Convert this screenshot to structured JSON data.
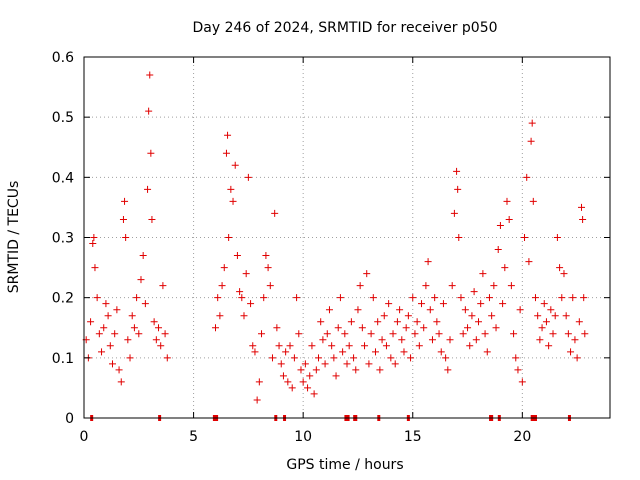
{
  "chart_data": {
    "type": "scatter",
    "title": "Day 246 of 2024, SRMTID for receiver p050",
    "xlabel": "GPS time / hours",
    "ylabel": "SRMTID / TECUs",
    "xlim": [
      0,
      24
    ],
    "ylim": [
      0,
      0.6
    ],
    "x_ticks": [
      "0",
      "5",
      "10",
      "15",
      "20"
    ],
    "x_tick_values": [
      0,
      5,
      10,
      15,
      20
    ],
    "y_ticks": [
      "0",
      "0.1",
      "0.2",
      "0.3",
      "0.4",
      "0.5",
      "0.6"
    ],
    "y_tick_values": [
      0,
      0.1,
      0.2,
      0.3,
      0.4,
      0.5,
      0.6
    ],
    "grid": true,
    "marker": "plus",
    "color": "#e00000",
    "series": [
      {
        "name": "SRMTID",
        "points": [
          [
            0.1,
            0.13
          ],
          [
            0.2,
            0.1
          ],
          [
            0.3,
            0.16
          ],
          [
            0.4,
            0.29
          ],
          [
            0.45,
            0.3
          ],
          [
            0.5,
            0.25
          ],
          [
            0.6,
            0.2
          ],
          [
            0.7,
            0.14
          ],
          [
            0.8,
            0.11
          ],
          [
            0.9,
            0.15
          ],
          [
            1.0,
            0.19
          ],
          [
            1.1,
            0.17
          ],
          [
            1.2,
            0.12
          ],
          [
            1.3,
            0.09
          ],
          [
            1.4,
            0.14
          ],
          [
            1.5,
            0.18
          ],
          [
            1.6,
            0.08
          ],
          [
            1.7,
            0.06
          ],
          [
            1.8,
            0.33
          ],
          [
            1.85,
            0.36
          ],
          [
            1.9,
            0.3
          ],
          [
            2.0,
            0.13
          ],
          [
            2.1,
            0.1
          ],
          [
            2.2,
            0.17
          ],
          [
            2.3,
            0.15
          ],
          [
            2.4,
            0.2
          ],
          [
            2.5,
            0.14
          ],
          [
            2.6,
            0.23
          ],
          [
            2.7,
            0.27
          ],
          [
            2.8,
            0.19
          ],
          [
            2.9,
            0.38
          ],
          [
            2.95,
            0.51
          ],
          [
            3.0,
            0.57
          ],
          [
            3.05,
            0.44
          ],
          [
            3.1,
            0.33
          ],
          [
            3.2,
            0.16
          ],
          [
            3.3,
            0.13
          ],
          [
            3.4,
            0.15
          ],
          [
            3.5,
            0.12
          ],
          [
            3.6,
            0.22
          ],
          [
            3.7,
            0.14
          ],
          [
            3.8,
            0.1
          ],
          [
            6.0,
            0.15
          ],
          [
            6.1,
            0.2
          ],
          [
            6.2,
            0.17
          ],
          [
            6.3,
            0.22
          ],
          [
            6.4,
            0.25
          ],
          [
            6.5,
            0.44
          ],
          [
            6.55,
            0.47
          ],
          [
            6.6,
            0.3
          ],
          [
            6.7,
            0.38
          ],
          [
            6.8,
            0.36
          ],
          [
            6.9,
            0.42
          ],
          [
            7.0,
            0.27
          ],
          [
            7.1,
            0.21
          ],
          [
            7.2,
            0.2
          ],
          [
            7.3,
            0.17
          ],
          [
            7.4,
            0.24
          ],
          [
            7.5,
            0.4
          ],
          [
            7.6,
            0.19
          ],
          [
            7.7,
            0.12
          ],
          [
            7.8,
            0.11
          ],
          [
            7.9,
            0.03
          ],
          [
            8.0,
            0.06
          ],
          [
            8.1,
            0.14
          ],
          [
            8.2,
            0.2
          ],
          [
            8.3,
            0.27
          ],
          [
            8.4,
            0.25
          ],
          [
            8.5,
            0.22
          ],
          [
            8.6,
            0.1
          ],
          [
            8.7,
            0.34
          ],
          [
            8.8,
            0.15
          ],
          [
            8.9,
            0.12
          ],
          [
            9.0,
            0.09
          ],
          [
            9.1,
            0.07
          ],
          [
            9.2,
            0.11
          ],
          [
            9.3,
            0.06
          ],
          [
            9.4,
            0.12
          ],
          [
            9.5,
            0.05
          ],
          [
            9.6,
            0.1
          ],
          [
            9.7,
            0.2
          ],
          [
            9.8,
            0.14
          ],
          [
            9.9,
            0.08
          ],
          [
            10.0,
            0.06
          ],
          [
            10.1,
            0.09
          ],
          [
            10.2,
            0.05
          ],
          [
            10.3,
            0.07
          ],
          [
            10.4,
            0.12
          ],
          [
            10.5,
            0.04
          ],
          [
            10.6,
            0.08
          ],
          [
            10.7,
            0.1
          ],
          [
            10.8,
            0.16
          ],
          [
            10.9,
            0.13
          ],
          [
            11.0,
            0.09
          ],
          [
            11.1,
            0.14
          ],
          [
            11.2,
            0.18
          ],
          [
            11.3,
            0.12
          ],
          [
            11.4,
            0.1
          ],
          [
            11.5,
            0.07
          ],
          [
            11.6,
            0.15
          ],
          [
            11.7,
            0.2
          ],
          [
            11.8,
            0.11
          ],
          [
            11.9,
            0.14
          ],
          [
            12.0,
            0.09
          ],
          [
            12.1,
            0.12
          ],
          [
            12.2,
            0.16
          ],
          [
            12.3,
            0.1
          ],
          [
            12.4,
            0.08
          ],
          [
            12.5,
            0.18
          ],
          [
            12.6,
            0.22
          ],
          [
            12.7,
            0.15
          ],
          [
            12.8,
            0.12
          ],
          [
            12.9,
            0.24
          ],
          [
            13.0,
            0.09
          ],
          [
            13.1,
            0.14
          ],
          [
            13.2,
            0.2
          ],
          [
            13.3,
            0.11
          ],
          [
            13.4,
            0.16
          ],
          [
            13.5,
            0.08
          ],
          [
            13.6,
            0.13
          ],
          [
            13.7,
            0.17
          ],
          [
            13.8,
            0.12
          ],
          [
            13.9,
            0.19
          ],
          [
            14.0,
            0.1
          ],
          [
            14.1,
            0.14
          ],
          [
            14.2,
            0.09
          ],
          [
            14.3,
            0.16
          ],
          [
            14.4,
            0.18
          ],
          [
            14.5,
            0.13
          ],
          [
            14.6,
            0.11
          ],
          [
            14.7,
            0.15
          ],
          [
            14.8,
            0.17
          ],
          [
            14.9,
            0.1
          ],
          [
            15.0,
            0.2
          ],
          [
            15.1,
            0.14
          ],
          [
            15.2,
            0.16
          ],
          [
            15.3,
            0.12
          ],
          [
            15.4,
            0.19
          ],
          [
            15.5,
            0.15
          ],
          [
            15.6,
            0.22
          ],
          [
            15.7,
            0.26
          ],
          [
            15.8,
            0.18
          ],
          [
            15.9,
            0.13
          ],
          [
            16.0,
            0.2
          ],
          [
            16.1,
            0.16
          ],
          [
            16.2,
            0.14
          ],
          [
            16.3,
            0.11
          ],
          [
            16.4,
            0.19
          ],
          [
            16.5,
            0.1
          ],
          [
            16.6,
            0.08
          ],
          [
            16.7,
            0.13
          ],
          [
            16.8,
            0.22
          ],
          [
            16.9,
            0.34
          ],
          [
            17.0,
            0.41
          ],
          [
            17.05,
            0.38
          ],
          [
            17.1,
            0.3
          ],
          [
            17.2,
            0.2
          ],
          [
            17.3,
            0.14
          ],
          [
            17.4,
            0.18
          ],
          [
            17.5,
            0.15
          ],
          [
            17.6,
            0.12
          ],
          [
            17.7,
            0.17
          ],
          [
            17.8,
            0.21
          ],
          [
            17.9,
            0.13
          ],
          [
            18.0,
            0.16
          ],
          [
            18.1,
            0.19
          ],
          [
            18.2,
            0.24
          ],
          [
            18.3,
            0.14
          ],
          [
            18.4,
            0.11
          ],
          [
            18.5,
            0.2
          ],
          [
            18.6,
            0.17
          ],
          [
            18.7,
            0.22
          ],
          [
            18.8,
            0.15
          ],
          [
            18.9,
            0.28
          ],
          [
            19.0,
            0.32
          ],
          [
            19.1,
            0.19
          ],
          [
            19.2,
            0.25
          ],
          [
            19.3,
            0.36
          ],
          [
            19.4,
            0.33
          ],
          [
            19.5,
            0.22
          ],
          [
            19.6,
            0.14
          ],
          [
            19.7,
            0.1
          ],
          [
            19.8,
            0.08
          ],
          [
            19.9,
            0.18
          ],
          [
            20.0,
            0.06
          ],
          [
            20.1,
            0.3
          ],
          [
            20.2,
            0.4
          ],
          [
            20.3,
            0.26
          ],
          [
            20.4,
            0.46
          ],
          [
            20.45,
            0.49
          ],
          [
            20.5,
            0.36
          ],
          [
            20.6,
            0.2
          ],
          [
            20.7,
            0.17
          ],
          [
            20.8,
            0.13
          ],
          [
            20.9,
            0.15
          ],
          [
            21.0,
            0.19
          ],
          [
            21.1,
            0.16
          ],
          [
            21.2,
            0.12
          ],
          [
            21.3,
            0.18
          ],
          [
            21.4,
            0.14
          ],
          [
            21.5,
            0.17
          ],
          [
            21.6,
            0.3
          ],
          [
            21.7,
            0.25
          ],
          [
            21.8,
            0.2
          ],
          [
            21.9,
            0.24
          ],
          [
            22.0,
            0.17
          ],
          [
            22.1,
            0.14
          ],
          [
            22.2,
            0.11
          ],
          [
            22.3,
            0.2
          ],
          [
            22.4,
            0.13
          ],
          [
            22.5,
            0.1
          ],
          [
            22.6,
            0.16
          ],
          [
            22.7,
            0.35
          ],
          [
            22.75,
            0.33
          ],
          [
            22.8,
            0.2
          ],
          [
            22.85,
            0.14
          ]
        ]
      }
    ],
    "gap_markers_x": [
      0.35,
      3.45,
      5.95,
      6.05,
      8.75,
      9.15,
      11.95,
      12.05,
      12.35,
      12.4,
      13.45,
      14.8,
      18.55,
      18.6,
      18.95,
      20.45,
      20.55,
      20.6,
      22.15
    ]
  }
}
